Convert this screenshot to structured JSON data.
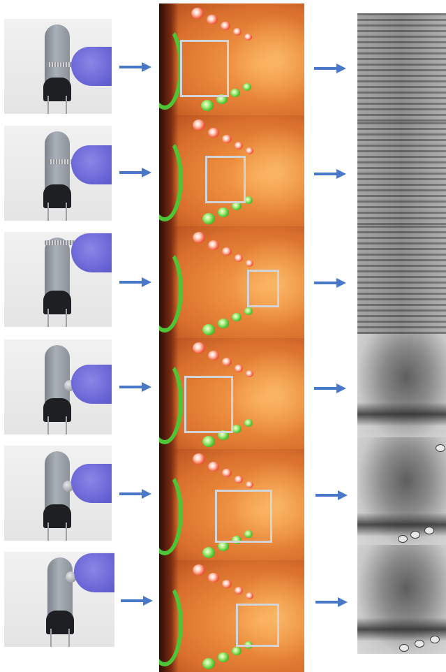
{
  "figure": {
    "rows": 6,
    "columns": [
      "photo",
      "camera-frame",
      "grayscale-crop"
    ],
    "colors": {
      "arrow": "#4a78c8",
      "roi_box": "#d2d4d8",
      "glove": "#6b66d6",
      "led_red": "#f2583a",
      "led_green": "#4cc12f",
      "frame_orange": "#e9873a"
    },
    "rows_detail": [
      {
        "tool": "threaded-rod",
        "crop_pattern": "stripes"
      },
      {
        "tool": "threaded-rod",
        "crop_pattern": "stripes"
      },
      {
        "tool": "threaded-rod",
        "crop_pattern": "stripes"
      },
      {
        "tool": "round-knob",
        "crop_pattern": "blob"
      },
      {
        "tool": "round-knob",
        "crop_pattern": "blob"
      },
      {
        "tool": "round-knob",
        "crop_pattern": "blob"
      }
    ]
  }
}
